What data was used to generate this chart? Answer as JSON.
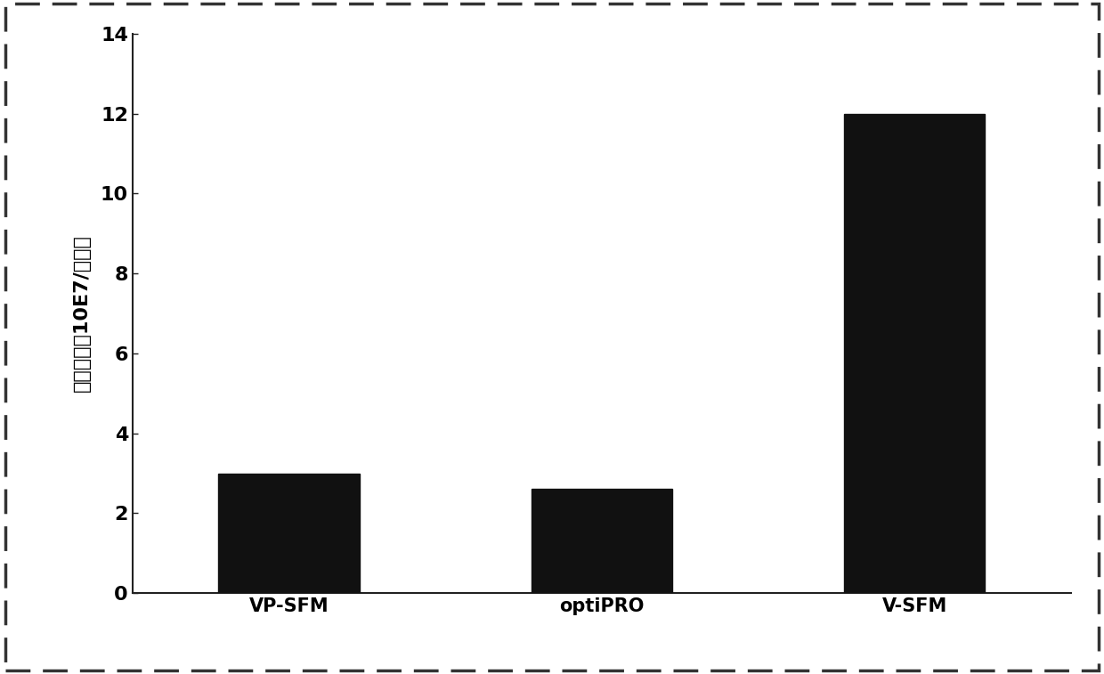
{
  "categories": [
    "VP-SFM",
    "optiPRO",
    "V-SFM"
  ],
  "values": [
    3.0,
    2.6,
    12.0
  ],
  "bar_color": "#111111",
  "bar_width": 0.45,
  "ylabel": "病毒浓度（10E7/毫升）",
  "ylim": [
    0,
    14
  ],
  "yticks": [
    0,
    2,
    4,
    6,
    8,
    10,
    12,
    14
  ],
  "xlabel": "",
  "title": "",
  "background_color": "#ffffff",
  "ylabel_fontsize": 16,
  "tick_fontsize": 16,
  "xtick_fontsize": 15,
  "figsize": [
    12.4,
    7.57
  ],
  "dpi": 100
}
